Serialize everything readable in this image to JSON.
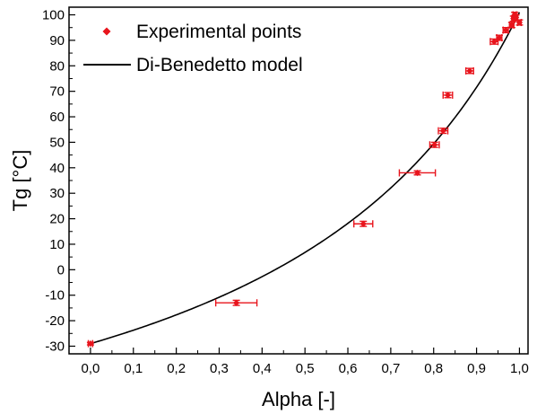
{
  "chart_data": {
    "type": "scatter",
    "xlabel": "Alpha [-]",
    "ylabel": "Tg [°C]",
    "xlim": [
      -0.05,
      1.02
    ],
    "ylim": [
      -33,
      103
    ],
    "xticks": [
      0,
      0.1,
      0.2,
      0.3,
      0.4,
      0.5,
      0.6,
      0.7,
      0.8,
      0.9,
      1.0
    ],
    "xtick_labels": [
      "0,0",
      "0,1",
      "0,2",
      "0,3",
      "0,4",
      "0,5",
      "0,6",
      "0,7",
      "0,8",
      "0,9",
      "1,0"
    ],
    "yticks": [
      -30,
      -20,
      -10,
      0,
      10,
      20,
      30,
      40,
      50,
      60,
      70,
      80,
      90,
      100
    ],
    "ytick_labels": [
      "-30",
      "-20",
      "-10",
      "0",
      "10",
      "20",
      "30",
      "40",
      "50",
      "60",
      "70",
      "80",
      "90",
      "100"
    ],
    "grid": false,
    "legend_position": "top-left",
    "series": [
      {
        "name": "Experimental points",
        "kind": "scatter",
        "color": "#e8141c",
        "points": [
          {
            "x": 0.0,
            "y": -29,
            "xerr": 0.005,
            "yerr": 0.5
          },
          {
            "x": 0.34,
            "y": -13,
            "xerr": 0.048,
            "yerr": 1.0
          },
          {
            "x": 0.636,
            "y": 18,
            "xerr": 0.022,
            "yerr": 1.0
          },
          {
            "x": 0.762,
            "y": 38,
            "xerr": 0.042,
            "yerr": 0.8
          },
          {
            "x": 0.802,
            "y": 49,
            "xerr": 0.011,
            "yerr": 1.0
          },
          {
            "x": 0.822,
            "y": 54.5,
            "xerr": 0.011,
            "yerr": 1.0
          },
          {
            "x": 0.833,
            "y": 68.5,
            "xerr": 0.011,
            "yerr": 1.0
          },
          {
            "x": 0.884,
            "y": 78,
            "xerr": 0.009,
            "yerr": 1.0
          },
          {
            "x": 0.941,
            "y": 89.5,
            "xerr": 0.009,
            "yerr": 1.0
          },
          {
            "x": 0.953,
            "y": 91,
            "xerr": 0.006,
            "yerr": 1.0
          },
          {
            "x": 0.968,
            "y": 94,
            "xerr": 0.006,
            "yerr": 1.0
          },
          {
            "x": 0.982,
            "y": 96,
            "xerr": 0.005,
            "yerr": 1.0
          },
          {
            "x": 0.986,
            "y": 98.5,
            "xerr": 0.004,
            "yerr": 1.0
          },
          {
            "x": 0.989,
            "y": 100,
            "xerr": 0.004,
            "yerr": 1.0
          },
          {
            "x": 0.992,
            "y": 99,
            "xerr": 0.004,
            "yerr": 1.0
          },
          {
            "x": 1.0,
            "y": 97,
            "xerr": 0.004,
            "yerr": 1.0
          }
        ]
      },
      {
        "name": "Di-Benedetto model",
        "kind": "line",
        "color": "#000000",
        "tg0": -29,
        "tginf": 101,
        "lambda": 0.38
      }
    ]
  }
}
